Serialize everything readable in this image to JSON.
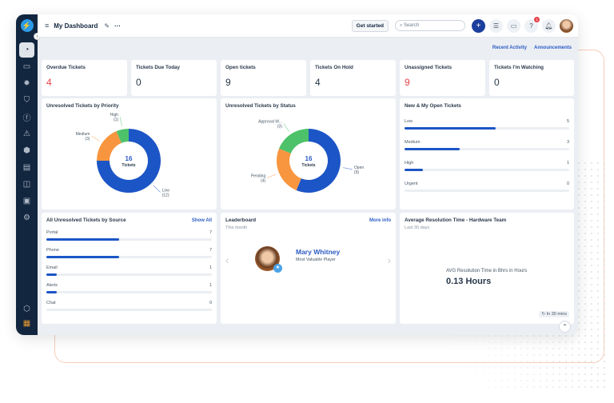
{
  "header": {
    "title": "My Dashboard",
    "get_started": "Get started",
    "search_placeholder": "Search",
    "notification_count": "1"
  },
  "subbar": {
    "recent": "Recent Activity",
    "announcements": "Announcements"
  },
  "stats": [
    {
      "label": "Overdue Tickets",
      "value": "4",
      "color": "#e8434b"
    },
    {
      "label": "Tickets Due Today",
      "value": "0",
      "color": "#263749"
    },
    {
      "label": "Open tickets",
      "value": "9",
      "color": "#263749"
    },
    {
      "label": "Tickets On Hold",
      "value": "4",
      "color": "#263749"
    },
    {
      "label": "Unassigned Tickets",
      "value": "9",
      "color": "#e8434b"
    },
    {
      "label": "Tickets I'm Watching",
      "value": "0",
      "color": "#263749"
    }
  ],
  "chart_data": [
    {
      "type": "pie",
      "title": "Unresolved Tickets by Priority",
      "center_value": "16",
      "center_label": "Tickets",
      "slices": [
        {
          "label": "Low",
          "value": 12,
          "color": "#1c55c6"
        },
        {
          "label": "Medium",
          "value": 3,
          "color": "#f7963f"
        },
        {
          "label": "High",
          "value": 1,
          "color": "#4dc26a"
        }
      ]
    },
    {
      "type": "pie",
      "title": "Unresolved Tickets by Status",
      "center_value": "16",
      "center_label": "Tickets",
      "slices": [
        {
          "label": "Open",
          "value": 9,
          "color": "#1c55c6"
        },
        {
          "label": "Pending",
          "value": 4,
          "color": "#f7963f"
        },
        {
          "label": "Approval W...",
          "value": 3,
          "color": "#4dc26a"
        }
      ]
    }
  ],
  "open_tickets": {
    "title": "New & My Open Tickets",
    "max": 9,
    "rows": [
      {
        "label": "Low",
        "value": 5
      },
      {
        "label": "Medium",
        "value": 3
      },
      {
        "label": "High",
        "value": 1
      },
      {
        "label": "Urgent",
        "value": 0
      }
    ]
  },
  "source": {
    "title": "All Unresolved Tickets by Source",
    "link": "Show All",
    "max": 16,
    "rows": [
      {
        "label": "Portal",
        "value": 7
      },
      {
        "label": "Phone",
        "value": 7
      },
      {
        "label": "Email",
        "value": 1
      },
      {
        "label": "Alerts",
        "value": 1
      },
      {
        "label": "Chat",
        "value": 0
      }
    ]
  },
  "leaderboard": {
    "title": "Leaderboard",
    "subtitle": "This month",
    "link": "More info",
    "name": "Mary Whitney",
    "role": "Most Valuable Player"
  },
  "resolution": {
    "title": "Average Resolution Time - Hardware Team",
    "subtitle": "Last 30 days",
    "label": "AVG Resolution Time in Bhrs in Hours",
    "value": "0.13 Hours",
    "refresh": "In 30 mins"
  }
}
